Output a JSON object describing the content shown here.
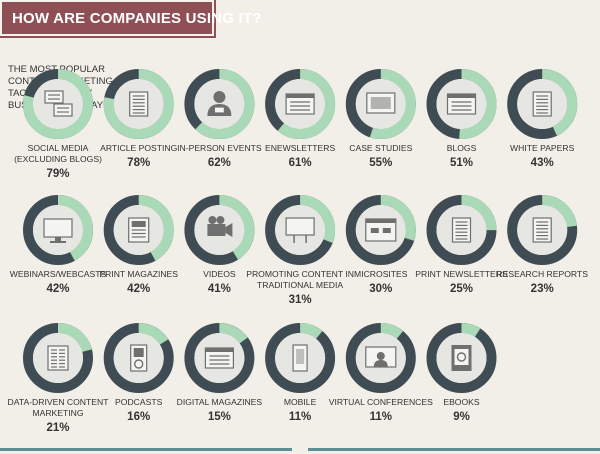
{
  "header": {
    "title": "HOW ARE COMPANIES USING IT?"
  },
  "intro": {
    "text": "THE MOST POPULAR CONTENT MARKETING TACTICS USED BY BUSINESSES TODAY"
  },
  "colors": {
    "banner": "#8e4f55",
    "ring_fill": "#a9d9b6",
    "ring_track": "#3f4c54",
    "disc": "#e6e6e2",
    "icon": "#6f6f6f",
    "bottom_bar": "#5e8e93"
  },
  "chart_data": {
    "type": "pie",
    "title": "THE MOST POPULAR CONTENT MARKETING TACTICS USED BY BUSINESSES TODAY",
    "unit": "%",
    "items": [
      {
        "label": [
          "SOCIAL MEDIA",
          "(EXCLUDING BLOGS)"
        ],
        "value": 79,
        "value_label": "79%",
        "icon": "chat-bubbles-icon"
      },
      {
        "label": [
          "ARTICLE POSTING"
        ],
        "value": 78,
        "value_label": "78%",
        "icon": "article-icon"
      },
      {
        "label": [
          "IN-PERSON EVENTS"
        ],
        "value": 62,
        "value_label": "62%",
        "icon": "person-nametag-icon"
      },
      {
        "label": [
          "ENEWSLETTERS"
        ],
        "value": 61,
        "value_label": "61%",
        "icon": "email-newsletter-icon"
      },
      {
        "label": [
          "CASE STUDIES"
        ],
        "value": 55,
        "value_label": "55%",
        "icon": "presentation-screen-icon"
      },
      {
        "label": [
          "BLOGS"
        ],
        "value": 51,
        "value_label": "51%",
        "icon": "browser-page-icon"
      },
      {
        "label": [
          "WHITE PAPERS"
        ],
        "value": 43,
        "value_label": "43%",
        "icon": "document-icon"
      },
      {
        "label": [
          "WEBINARS/WEBCASTS"
        ],
        "value": 42,
        "value_label": "42%",
        "icon": "monitor-icon"
      },
      {
        "label": [
          "PRINT MAGAZINES"
        ],
        "value": 42,
        "value_label": "42%",
        "icon": "magazine-icon"
      },
      {
        "label": [
          "VIDEOS"
        ],
        "value": 41,
        "value_label": "41%",
        "icon": "video-camera-icon"
      },
      {
        "label": [
          "PROMOTING CONTENT IN",
          "TRADITIONAL MEDIA"
        ],
        "value": 31,
        "value_label": "31%",
        "icon": "billboard-icon"
      },
      {
        "label": [
          "MICROSITES"
        ],
        "value": 30,
        "value_label": "30%",
        "icon": "microsite-window-icon"
      },
      {
        "label": [
          "PRINT NEWSLETTERS"
        ],
        "value": 25,
        "value_label": "25%",
        "icon": "newsletter-icon"
      },
      {
        "label": [
          "RESEARCH REPORTS"
        ],
        "value": 23,
        "value_label": "23%",
        "icon": "report-icon"
      },
      {
        "label": [
          "DATA-DRIVEN CONTENT",
          "MARKETING"
        ],
        "value": 21,
        "value_label": "21%",
        "icon": "data-sheet-icon"
      },
      {
        "label": [
          "PODCASTS"
        ],
        "value": 16,
        "value_label": "16%",
        "icon": "media-player-icon"
      },
      {
        "label": [
          "DIGITAL MAGAZINES"
        ],
        "value": 15,
        "value_label": "15%",
        "icon": "digital-magazine-icon"
      },
      {
        "label": [
          "MOBILE"
        ],
        "value": 11,
        "value_label": "11%",
        "icon": "mobile-phone-icon"
      },
      {
        "label": [
          "VIRTUAL CONFERENCES"
        ],
        "value": 11,
        "value_label": "11%",
        "icon": "video-conference-icon"
      },
      {
        "label": [
          "EBOOKS"
        ],
        "value": 9,
        "value_label": "9%",
        "icon": "ebook-icon"
      }
    ]
  }
}
